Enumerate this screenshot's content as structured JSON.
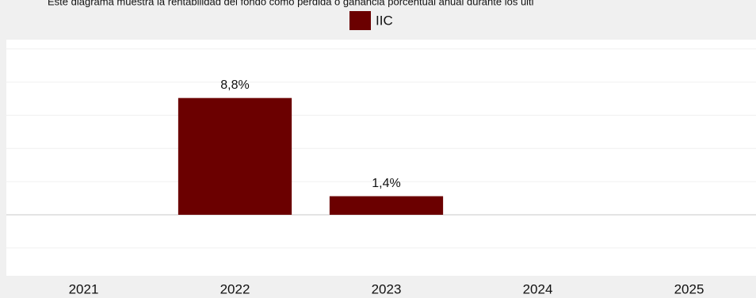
{
  "chart_data": {
    "type": "bar",
    "title": "Este diagrama muestra la rentabilidad del fondo como pérdida o ganancia porcentual anual durante los últi",
    "categories": [
      "2021",
      "2022",
      "2023",
      "2024",
      "2025"
    ],
    "series": [
      {
        "name": "IIC",
        "color": "#6b0000",
        "values": [
          null,
          8.8,
          1.4,
          null,
          null
        ],
        "value_labels": [
          null,
          "8,8%",
          "1,4%",
          null,
          null
        ]
      }
    ],
    "ylim": [
      -4.6,
      13.2
    ],
    "yticks": [
      -2.5,
      0,
      2.5,
      5,
      7.5,
      10,
      12.5
    ],
    "grid": true,
    "legend": "top"
  }
}
